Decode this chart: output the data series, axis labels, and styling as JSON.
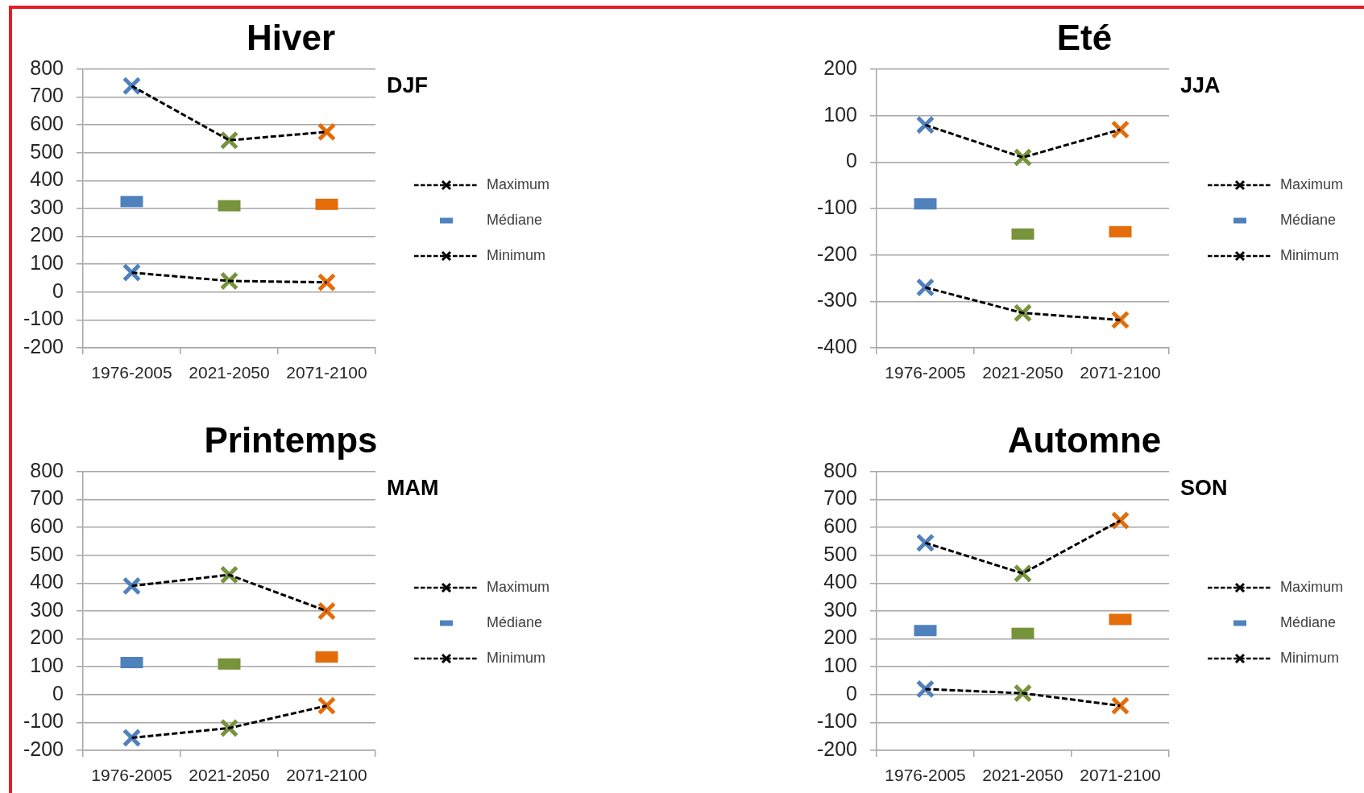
{
  "chart_data": [
    {
      "type": "line",
      "title": "Hiver",
      "annotations": [
        "DJF"
      ],
      "categories": [
        "1976-2005",
        "2021-2050",
        "2071-2100"
      ],
      "ylim": [
        -200,
        800
      ],
      "yticks": [
        -200,
        -100,
        0,
        100,
        200,
        300,
        400,
        500,
        600,
        700,
        800
      ],
      "grid": "y",
      "legend": "right",
      "series": [
        {
          "name": "Maximum",
          "type": "line",
          "color": "#000000",
          "colors": [
            "#4f81bd",
            "#77933c",
            "#e46c0a"
          ],
          "values": [
            740,
            545,
            575
          ],
          "marker": "cross",
          "line_style": "dashed"
        },
        {
          "name": "Médiane",
          "type": "scatter",
          "colors": [
            "#4f81bd",
            "#77933c",
            "#e46c0a"
          ],
          "values": [
            325,
            310,
            315
          ],
          "marker": "square"
        },
        {
          "name": "Minimum",
          "type": "line",
          "color": "#000000",
          "colors": [
            "#4f81bd",
            "#77933c",
            "#e46c0a"
          ],
          "values": [
            70,
            40,
            35
          ],
          "marker": "cross",
          "line_style": "dashed"
        }
      ]
    },
    {
      "type": "line",
      "title": "Eté",
      "annotations": [
        "JJA"
      ],
      "categories": [
        "1976-2005",
        "2021-2050",
        "2071-2100"
      ],
      "ylim": [
        -400,
        200
      ],
      "yticks": [
        -400,
        -300,
        -200,
        -100,
        0,
        100,
        200
      ],
      "grid": "y",
      "legend": "right",
      "series": [
        {
          "name": "Maximum",
          "type": "line",
          "color": "#000000",
          "colors": [
            "#4f81bd",
            "#77933c",
            "#e46c0a"
          ],
          "values": [
            80,
            10,
            70
          ],
          "marker": "cross",
          "line_style": "dashed"
        },
        {
          "name": "Médiane",
          "type": "scatter",
          "colors": [
            "#4f81bd",
            "#77933c",
            "#e46c0a"
          ],
          "values": [
            -90,
            -155,
            -150
          ],
          "marker": "square"
        },
        {
          "name": "Minimum",
          "type": "line",
          "color": "#000000",
          "colors": [
            "#4f81bd",
            "#77933c",
            "#e46c0a"
          ],
          "values": [
            -270,
            -325,
            -340
          ],
          "marker": "cross",
          "line_style": "dashed"
        }
      ]
    },
    {
      "type": "line",
      "title": "Printemps",
      "annotations": [
        "MAM"
      ],
      "categories": [
        "1976-2005",
        "2021-2050",
        "2071-2100"
      ],
      "ylim": [
        -200,
        800
      ],
      "yticks": [
        -200,
        -100,
        0,
        100,
        200,
        300,
        400,
        500,
        600,
        700,
        800
      ],
      "grid": "y",
      "legend": "right",
      "series": [
        {
          "name": "Maximum",
          "type": "line",
          "color": "#000000",
          "colors": [
            "#4f81bd",
            "#77933c",
            "#e46c0a"
          ],
          "values": [
            390,
            430,
            300
          ],
          "marker": "cross",
          "line_style": "dashed"
        },
        {
          "name": "Médiane",
          "type": "scatter",
          "colors": [
            "#4f81bd",
            "#77933c",
            "#e46c0a"
          ],
          "values": [
            115,
            110,
            135
          ],
          "marker": "square"
        },
        {
          "name": "Minimum",
          "type": "line",
          "color": "#000000",
          "colors": [
            "#4f81bd",
            "#77933c",
            "#e46c0a"
          ],
          "values": [
            -155,
            -120,
            -40
          ],
          "marker": "cross",
          "line_style": "dashed"
        }
      ]
    },
    {
      "type": "line",
      "title": "Automne",
      "annotations": [
        "SON"
      ],
      "categories": [
        "1976-2005",
        "2021-2050",
        "2071-2100"
      ],
      "ylim": [
        -200,
        800
      ],
      "yticks": [
        -200,
        -100,
        0,
        100,
        200,
        300,
        400,
        500,
        600,
        700,
        800
      ],
      "grid": "y",
      "legend": "right",
      "series": [
        {
          "name": "Maximum",
          "type": "line",
          "color": "#000000",
          "colors": [
            "#4f81bd",
            "#77933c",
            "#e46c0a"
          ],
          "values": [
            545,
            435,
            625
          ],
          "marker": "cross",
          "line_style": "dashed"
        },
        {
          "name": "Médiane",
          "type": "scatter",
          "colors": [
            "#4f81bd",
            "#77933c",
            "#e46c0a"
          ],
          "values": [
            230,
            220,
            270
          ],
          "marker": "square"
        },
        {
          "name": "Minimum",
          "type": "line",
          "color": "#000000",
          "colors": [
            "#4f81bd",
            "#77933c",
            "#e46c0a"
          ],
          "values": [
            20,
            5,
            -40
          ],
          "marker": "cross",
          "line_style": "dashed"
        }
      ]
    }
  ]
}
